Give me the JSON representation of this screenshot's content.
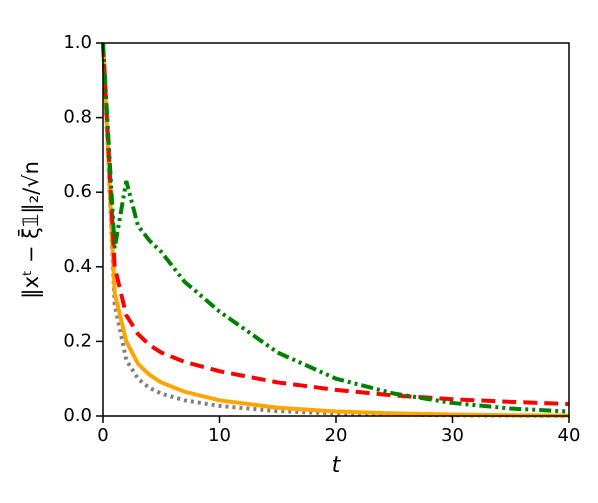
{
  "chart_data": {
    "type": "line",
    "xlabel": "t",
    "ylabel": "‖xᵗ − ξ̄𝟙‖₂/√n",
    "x": [
      0,
      1,
      2,
      3,
      4,
      5,
      7,
      10,
      15,
      20,
      25,
      30,
      35,
      40
    ],
    "series": [
      {
        "color": "#808080",
        "dash": "dotted",
        "values": [
          1.0,
          0.3,
          0.15,
          0.1,
          0.075,
          0.06,
          0.042,
          0.027,
          0.013,
          0.007,
          0.004,
          0.002,
          0.001,
          0.0
        ]
      },
      {
        "color": "#ffa500",
        "dash": "solid",
        "values": [
          1.0,
          0.33,
          0.2,
          0.14,
          0.11,
          0.09,
          0.065,
          0.042,
          0.022,
          0.012,
          0.007,
          0.004,
          0.002,
          0.001
        ]
      },
      {
        "color": "#ff0000",
        "dash": "dashed",
        "values": [
          1.0,
          0.4,
          0.27,
          0.22,
          0.19,
          0.17,
          0.145,
          0.12,
          0.09,
          0.07,
          0.055,
          0.045,
          0.038,
          0.032
        ]
      },
      {
        "color": "#008000",
        "dash": "dashdotdot",
        "values": [
          1.0,
          0.45,
          0.63,
          0.51,
          0.47,
          0.44,
          0.36,
          0.28,
          0.17,
          0.1,
          0.06,
          0.035,
          0.02,
          0.012
        ]
      }
    ],
    "xlim": [
      0,
      40
    ],
    "xticks": [
      0,
      10,
      20,
      30,
      40
    ],
    "ylim": [
      0,
      1.0
    ],
    "yticks": [
      {
        "value": 0,
        "label": "0.0"
      },
      {
        "value": 0.2,
        "label": "0.2"
      },
      {
        "value": 0.4,
        "label": "0.4"
      },
      {
        "value": 0.6,
        "label": "0.6"
      },
      {
        "value": 0.8,
        "label": "0.8"
      },
      {
        "value": 1.0,
        "label": "1.0"
      }
    ]
  }
}
